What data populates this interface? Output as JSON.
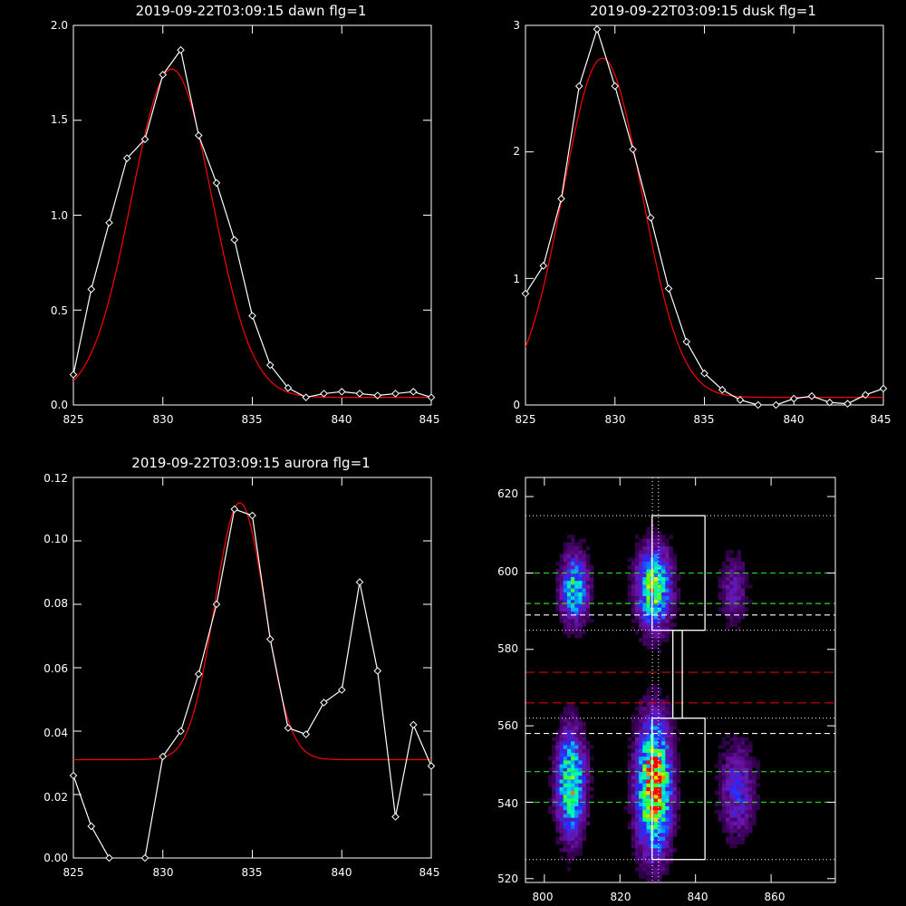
{
  "colors": {
    "background": "#000000",
    "axes": "#ffffff",
    "data": "#ffffff",
    "fit": "#ff0000"
  },
  "chart_data": [
    {
      "type": "line",
      "title": "2019-09-22T03:09:15 dawn flg=1",
      "xlim": [
        825,
        845
      ],
      "ylim": [
        0,
        2.0
      ],
      "xticks": [
        825,
        830,
        835,
        840,
        845
      ],
      "xticklabels": [
        "825",
        "830",
        "835",
        "840",
        "845"
      ],
      "yticks": [
        0,
        0.5,
        1.0,
        1.5,
        2.0
      ],
      "yticklabels": [
        "0.0",
        "0.5",
        "1.0",
        "1.5",
        "2.0"
      ],
      "grid": false,
      "legend": "none",
      "series": [
        {
          "style": "white line with diamond markers",
          "x": [
            825,
            826,
            827,
            828,
            829,
            830,
            831,
            832,
            833,
            834,
            835,
            836,
            837,
            838,
            839,
            840,
            841,
            842,
            843,
            844,
            845
          ],
          "y": [
            0.16,
            0.61,
            0.96,
            1.3,
            1.4,
            1.74,
            1.87,
            1.42,
            1.17,
            0.87,
            0.47,
            0.21,
            0.09,
            0.04,
            0.06,
            0.07,
            0.06,
            0.05,
            0.06,
            0.07,
            0.04
          ]
        },
        {
          "style": "red gaussian fit",
          "fit": {
            "amp": 1.73,
            "center": 830.5,
            "sigma": 2.25,
            "base": 0.04
          }
        }
      ]
    },
    {
      "type": "line",
      "title": "2019-09-22T03:09:15 dusk flg=1",
      "xlim": [
        825,
        845
      ],
      "ylim": [
        0,
        3
      ],
      "xticks": [
        825,
        830,
        835,
        840,
        845
      ],
      "xticklabels": [
        "825",
        "830",
        "835",
        "840",
        "845"
      ],
      "yticks": [
        0,
        1,
        2,
        3
      ],
      "yticklabels": [
        "0",
        "1",
        "2",
        "3"
      ],
      "grid": false,
      "legend": "none",
      "series": [
        {
          "style": "white line with diamond markers",
          "x": [
            825,
            826,
            827,
            828,
            829,
            830,
            831,
            832,
            833,
            834,
            835,
            836,
            837,
            838,
            839,
            840,
            841,
            842,
            843,
            844,
            845
          ],
          "y": [
            0.88,
            1.1,
            1.63,
            2.52,
            2.97,
            2.52,
            2.02,
            1.48,
            0.92,
            0.5,
            0.25,
            0.12,
            0.04,
            0.0,
            0.0,
            0.05,
            0.07,
            0.02,
            0.01,
            0.08,
            0.13
          ]
        },
        {
          "style": "red gaussian fit",
          "fit": {
            "amp": 2.68,
            "center": 829.3,
            "sigma": 2.2,
            "base": 0.06
          }
        }
      ]
    },
    {
      "type": "line",
      "title": "2019-09-22T03:09:15 aurora flg=1",
      "xlim": [
        825,
        845
      ],
      "ylim": [
        0,
        0.12
      ],
      "xticks": [
        825,
        830,
        835,
        840,
        845
      ],
      "xticklabels": [
        "825",
        "830",
        "835",
        "840",
        "845"
      ],
      "yticks": [
        0,
        0.02,
        0.04,
        0.06,
        0.08,
        0.1,
        0.12
      ],
      "yticklabels": [
        "0.00",
        "0.02",
        "0.04",
        "0.06",
        "0.08",
        "0.10",
        "0.12"
      ],
      "grid": false,
      "legend": "none",
      "series": [
        {
          "style": "white line with diamond markers",
          "x": [
            825,
            826,
            827,
            828,
            829,
            830,
            831,
            832,
            833,
            834,
            835,
            836,
            837,
            838,
            839,
            840,
            841,
            842,
            843,
            844,
            845
          ],
          "y": [
            0.026,
            0.01,
            0.0,
            -0.002,
            0.0,
            0.032,
            0.04,
            0.058,
            0.08,
            0.11,
            0.108,
            0.069,
            0.041,
            0.039,
            0.049,
            0.053,
            0.087,
            0.059,
            0.013,
            0.042,
            0.029
          ]
        },
        {
          "style": "red gaussian fit",
          "fit": {
            "amp": 0.081,
            "center": 834.3,
            "sigma": 1.4,
            "base": 0.031
          }
        }
      ]
    },
    {
      "type": "heatmap",
      "title": "",
      "xlim": [
        795,
        877
      ],
      "ylim": [
        519,
        625
      ],
      "xticks": [
        800,
        820,
        840,
        860
      ],
      "xticklabels": [
        "800",
        "820",
        "840",
        "860"
      ],
      "yticks": [
        520,
        540,
        560,
        580,
        600,
        620
      ],
      "yticklabels": [
        "520",
        "540",
        "560",
        "580",
        "600",
        "620"
      ],
      "colormap": "rainbow (black-purple-blue-cyan-green-yellow-red)",
      "blobs": [
        {
          "x": 808,
          "y": 596,
          "sx": 2.4,
          "sy": 6,
          "amp": 0.55
        },
        {
          "x": 829,
          "y": 596,
          "sx": 3,
          "sy": 7,
          "amp": 0.7
        },
        {
          "x": 850,
          "y": 596,
          "sx": 2.5,
          "sy": 6,
          "amp": 0.2
        },
        {
          "x": 807,
          "y": 545,
          "sx": 2.5,
          "sy": 9,
          "amp": 0.7
        },
        {
          "x": 829,
          "y": 544,
          "sx": 3,
          "sy": 11,
          "amp": 0.95
        },
        {
          "x": 851,
          "y": 543,
          "sx": 3,
          "sy": 8,
          "amp": 0.3
        }
      ],
      "overlays": {
        "vertical_dotted_x": [
          828.6,
          830.2
        ],
        "horizontal_dotted_y": [
          525,
          562,
          585,
          615
        ],
        "white_dashed_y": [
          589,
          558
        ],
        "green_dashed_y": [
          600,
          592,
          548,
          540
        ],
        "red_dashed_y": [
          574,
          566
        ],
        "boxes": [
          {
            "x0": 828.5,
            "x1": 842.5,
            "y0": 585,
            "y1": 615
          },
          {
            "x0": 834,
            "x1": 836.5,
            "y0": 562,
            "y1": 585
          },
          {
            "x0": 828.5,
            "x1": 842.5,
            "y0": 525,
            "y1": 562
          }
        ]
      }
    }
  ]
}
